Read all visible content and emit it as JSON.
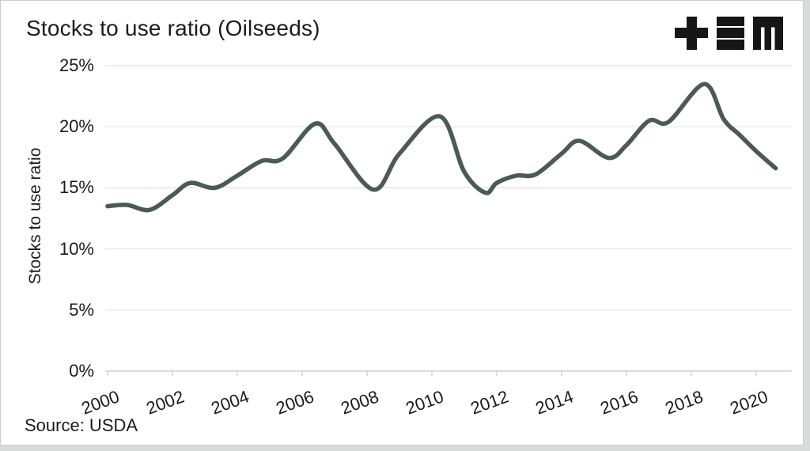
{
  "header": {
    "title": "Stocks to use ratio (Oilseeds)"
  },
  "logo": {
    "description": "plus, triple-bar and blocky-m monogram",
    "color": "#161616",
    "glyphs": [
      "plus",
      "triple-bar",
      "m"
    ]
  },
  "source": "Source: USDA",
  "colors": {
    "line": "#4a5a55",
    "grid": "#e3e3e3",
    "axis": "#c7c9c9",
    "text": "#1b1b1b",
    "background": "#ffffff",
    "page_edge": "#d9dbdb"
  },
  "chart_data": {
    "type": "line",
    "title": "Stocks to use ratio (Oilseeds)",
    "xlabel": "",
    "ylabel": "Stocks to use ratio",
    "source": "Source: USDA",
    "grid": "horizontal",
    "legend": "none",
    "xlim": [
      1999.9,
      2021.3
    ],
    "ylim": [
      0,
      25.6
    ],
    "x_ticks": [
      {
        "value": 2000,
        "label": "2000"
      },
      {
        "value": 2002,
        "label": "2002"
      },
      {
        "value": 2004,
        "label": "2004"
      },
      {
        "value": 2006,
        "label": "2006"
      },
      {
        "value": 2008,
        "label": "2008"
      },
      {
        "value": 2010,
        "label": "2010"
      },
      {
        "value": 2012,
        "label": "2012"
      },
      {
        "value": 2014,
        "label": "2014"
      },
      {
        "value": 2016,
        "label": "2016"
      },
      {
        "value": 2018,
        "label": "2018"
      },
      {
        "value": 2020,
        "label": "2020"
      }
    ],
    "y_ticks": [
      {
        "value": 0,
        "label": "0%"
      },
      {
        "value": 5,
        "label": "5%"
      },
      {
        "value": 10,
        "label": "10%"
      },
      {
        "value": 15,
        "label": "15%"
      },
      {
        "value": 20,
        "label": "20%"
      },
      {
        "value": 25,
        "label": "25%"
      }
    ],
    "series": [
      {
        "name": "Stocks to use ratio (Oilseeds)",
        "color": "#4a5a55",
        "stroke_width": 5.5,
        "points": [
          [
            2000.0,
            13.5
          ],
          [
            2000.6,
            13.6
          ],
          [
            2001.3,
            13.2
          ],
          [
            2002.0,
            14.4
          ],
          [
            2002.55,
            15.4
          ],
          [
            2003.3,
            15.0
          ],
          [
            2004.0,
            16.0
          ],
          [
            2004.75,
            17.2
          ],
          [
            2005.4,
            17.4
          ],
          [
            2006.4,
            20.25
          ],
          [
            2007.0,
            18.6
          ],
          [
            2008.2,
            14.85
          ],
          [
            2009.0,
            17.8
          ],
          [
            2010.25,
            20.85
          ],
          [
            2011.0,
            16.3
          ],
          [
            2011.65,
            14.6
          ],
          [
            2012.0,
            15.4
          ],
          [
            2012.6,
            16.0
          ],
          [
            2013.2,
            16.1
          ],
          [
            2014.0,
            17.8
          ],
          [
            2014.55,
            18.85
          ],
          [
            2015.45,
            17.45
          ],
          [
            2016.0,
            18.5
          ],
          [
            2016.7,
            20.5
          ],
          [
            2017.3,
            20.4
          ],
          [
            2018.4,
            23.5
          ],
          [
            2019.0,
            20.6
          ],
          [
            2019.5,
            19.3
          ],
          [
            2020.0,
            18.0
          ],
          [
            2020.6,
            16.6
          ]
        ]
      }
    ]
  }
}
